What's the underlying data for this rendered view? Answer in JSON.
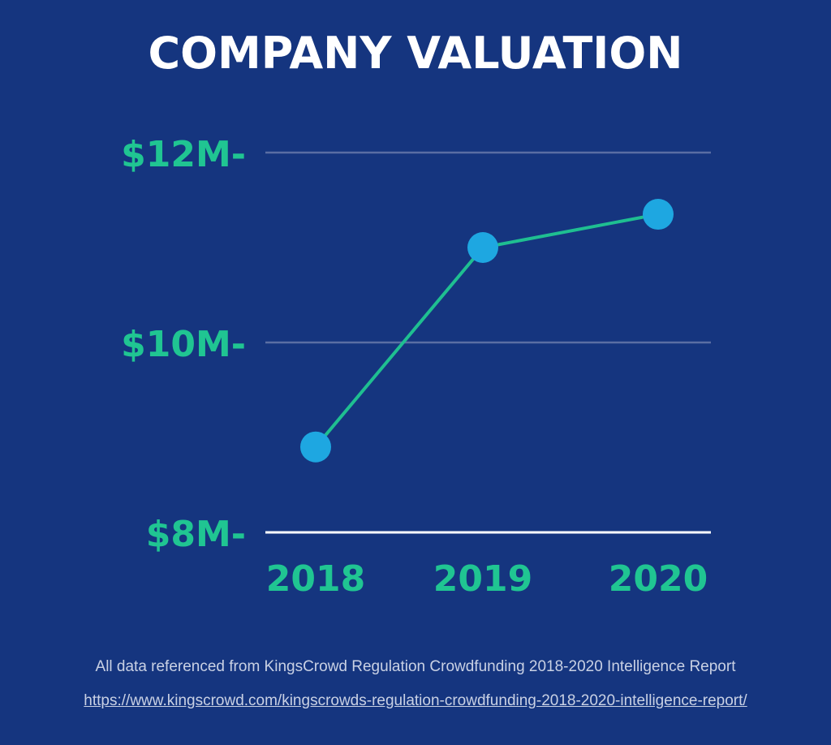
{
  "chart_data": {
    "type": "line",
    "title": "COMPANY VALUATION",
    "categories": [
      "2018",
      "2019",
      "2020"
    ],
    "values": [
      8.9,
      11.0,
      11.35
    ],
    "y_ticks": [
      {
        "value": 8,
        "label": "$8M-"
      },
      {
        "value": 10,
        "label": "$10M-"
      },
      {
        "value": 12,
        "label": "$12M-"
      }
    ],
    "ylim": [
      8,
      12
    ],
    "grid": true,
    "colors": {
      "background": "#15357f",
      "line": "#1fbf91",
      "marker": "#1ea7e1",
      "grid": "#5a6ea3",
      "baseline": "#ffffff",
      "tick_text": "#20c592",
      "title_text": "#ffffff"
    }
  },
  "footer": {
    "note": "All data referenced from KingsCrowd Regulation Crowdfunding 2018-2020 Intelligence Report",
    "link": "https://www.kingscrowd.com/kingscrowds-regulation-crowdfunding-2018-2020-intelligence-report/"
  }
}
